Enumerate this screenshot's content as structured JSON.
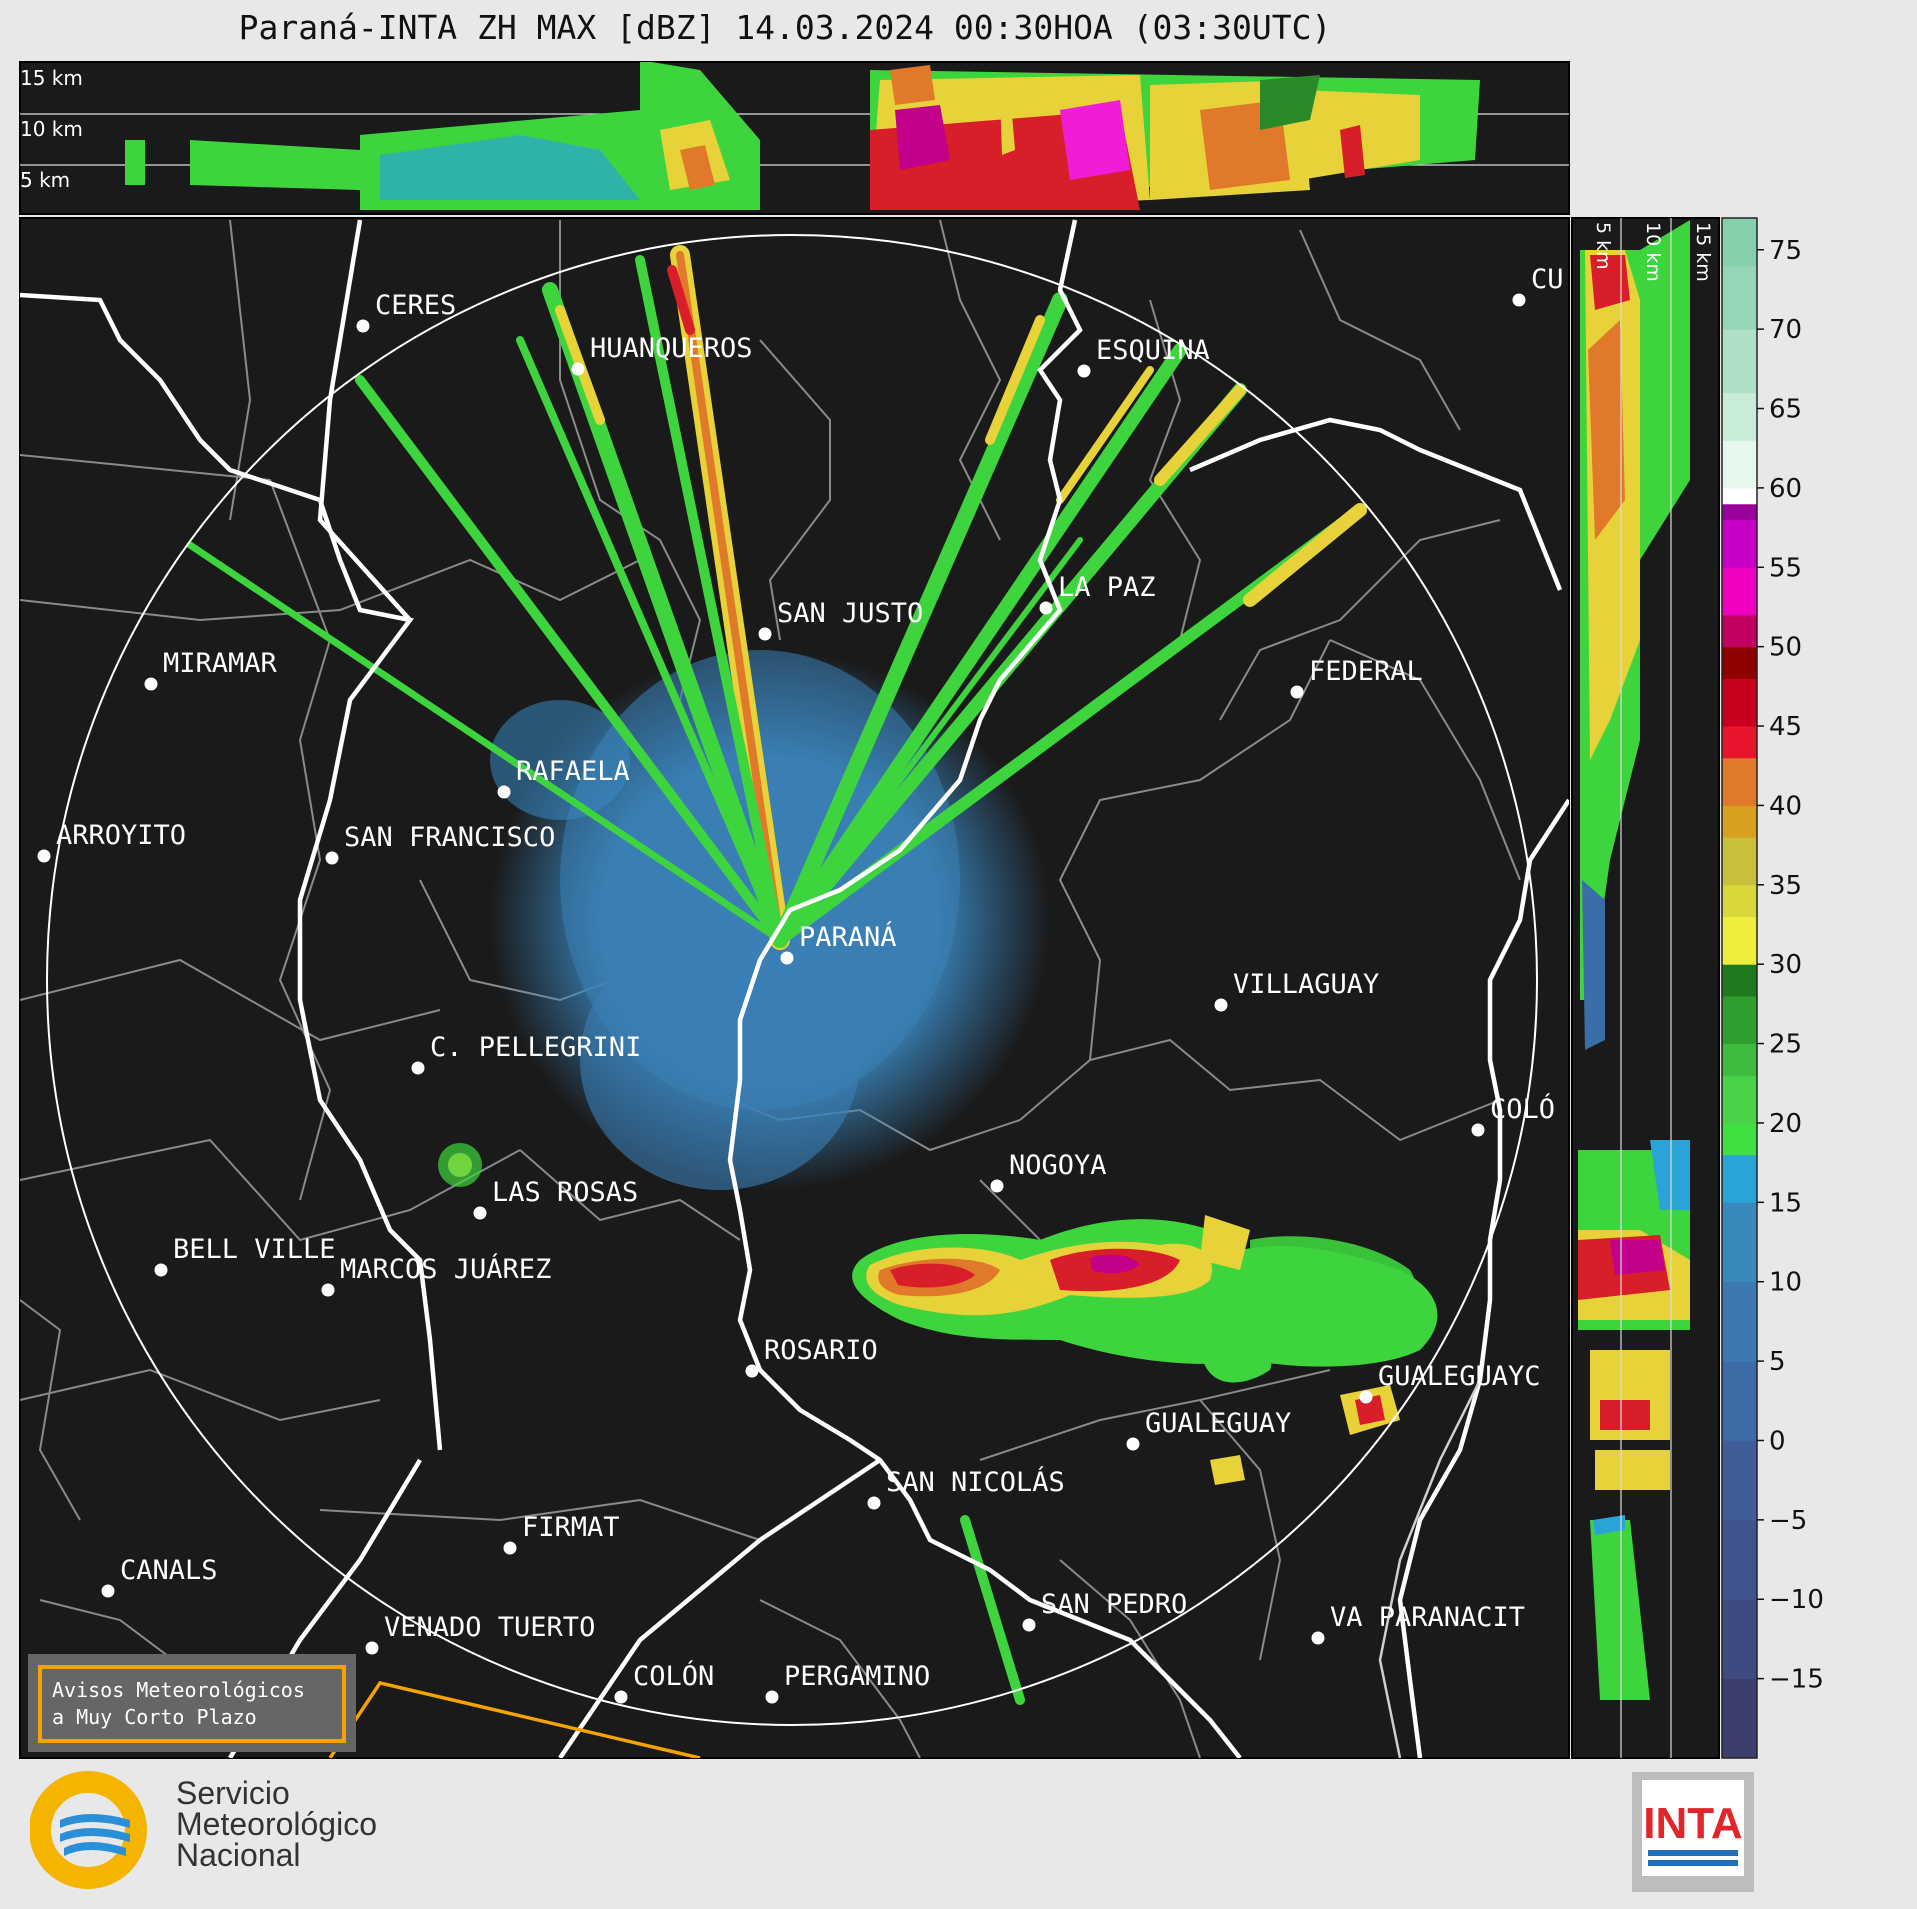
{
  "title": "Paraná-INTA ZH MAX [dBZ] 14.03.2024 00:30HOA (03:30UTC)",
  "top_profile_labels": [
    "15 km",
    "10 km",
    "5 km"
  ],
  "side_profile_labels": [
    "5 km",
    "10 km",
    "15 km"
  ],
  "cities": [
    {
      "name": "CERES",
      "pos": [
        375,
        318
      ]
    },
    {
      "name": "HUANQUEROS",
      "pos": [
        590,
        361
      ]
    },
    {
      "name": "ESQUINA",
      "pos": [
        1096,
        363
      ]
    },
    {
      "name": "CU",
      "pos": [
        1531,
        292
      ]
    },
    {
      "name": "SAN JUSTO",
      "pos": [
        777,
        626
      ]
    },
    {
      "name": "LA PAZ",
      "pos": [
        1058,
        600
      ]
    },
    {
      "name": "MIRAMAR",
      "pos": [
        163,
        676
      ]
    },
    {
      "name": "FEDERAL",
      "pos": [
        1309,
        684
      ]
    },
    {
      "name": "RAFAELA",
      "pos": [
        516,
        784
      ]
    },
    {
      "name": "ARROYITO",
      "pos": [
        56,
        848
      ]
    },
    {
      "name": "SAN FRANCISCO",
      "pos": [
        344,
        850
      ]
    },
    {
      "name": "PARANÁ",
      "pos": [
        799,
        950
      ]
    },
    {
      "name": "VILLAGUAY",
      "pos": [
        1233,
        997
      ]
    },
    {
      "name": "C. PELLEGRINI",
      "pos": [
        430,
        1060
      ]
    },
    {
      "name": "COLÓ",
      "pos": [
        1490,
        1122
      ]
    },
    {
      "name": "NOGOYA",
      "pos": [
        1009,
        1178
      ]
    },
    {
      "name": "LAS ROSAS",
      "pos": [
        492,
        1205
      ]
    },
    {
      "name": "BELL VILLE",
      "pos": [
        173,
        1262
      ]
    },
    {
      "name": "MARCOS JUÁREZ",
      "pos": [
        340,
        1282
      ]
    },
    {
      "name": "ROSARIO",
      "pos": [
        764,
        1363
      ]
    },
    {
      "name": "GUALEGUAYC",
      "pos": [
        1378,
        1389
      ]
    },
    {
      "name": "GUALEGUAY",
      "pos": [
        1145,
        1436
      ]
    },
    {
      "name": "SAN NICOLÁS",
      "pos": [
        886,
        1495
      ]
    },
    {
      "name": "FIRMAT",
      "pos": [
        522,
        1540
      ]
    },
    {
      "name": "CANALS",
      "pos": [
        120,
        1583
      ]
    },
    {
      "name": "SAN PEDRO",
      "pos": [
        1041,
        1617
      ]
    },
    {
      "name": "VENADO TUERTO",
      "pos": [
        384,
        1640
      ]
    },
    {
      "name": "VA PARANACIT",
      "pos": [
        1330,
        1630
      ]
    },
    {
      "name": "COLÓN",
      "pos": [
        633,
        1689
      ]
    },
    {
      "name": "PERGAMINO",
      "pos": [
        784,
        1689
      ]
    }
  ],
  "colorbar": {
    "ticks": [
      "75",
      "70",
      "65",
      "60",
      "55",
      "50",
      "45",
      "40",
      "35",
      "30",
      "25",
      "20",
      "15",
      "10",
      "5",
      "0",
      "−5",
      "−10",
      "−15"
    ],
    "min": -20,
    "max": 77
  },
  "warning_box": {
    "line1": "Avisos Meteorológicos",
    "line2": "a Muy Corto Plazo"
  },
  "logo_smn": {
    "line1": "Servicio",
    "line2": "Meteorológico",
    "line3": "Nacional"
  },
  "logo_inta": "INTA",
  "colors": {
    "map_bg": "#1a1a1a",
    "page_bg": "#e8e8e8",
    "river": "#ffffff",
    "border": "#8a8a8a",
    "orange": "#f5a300"
  }
}
